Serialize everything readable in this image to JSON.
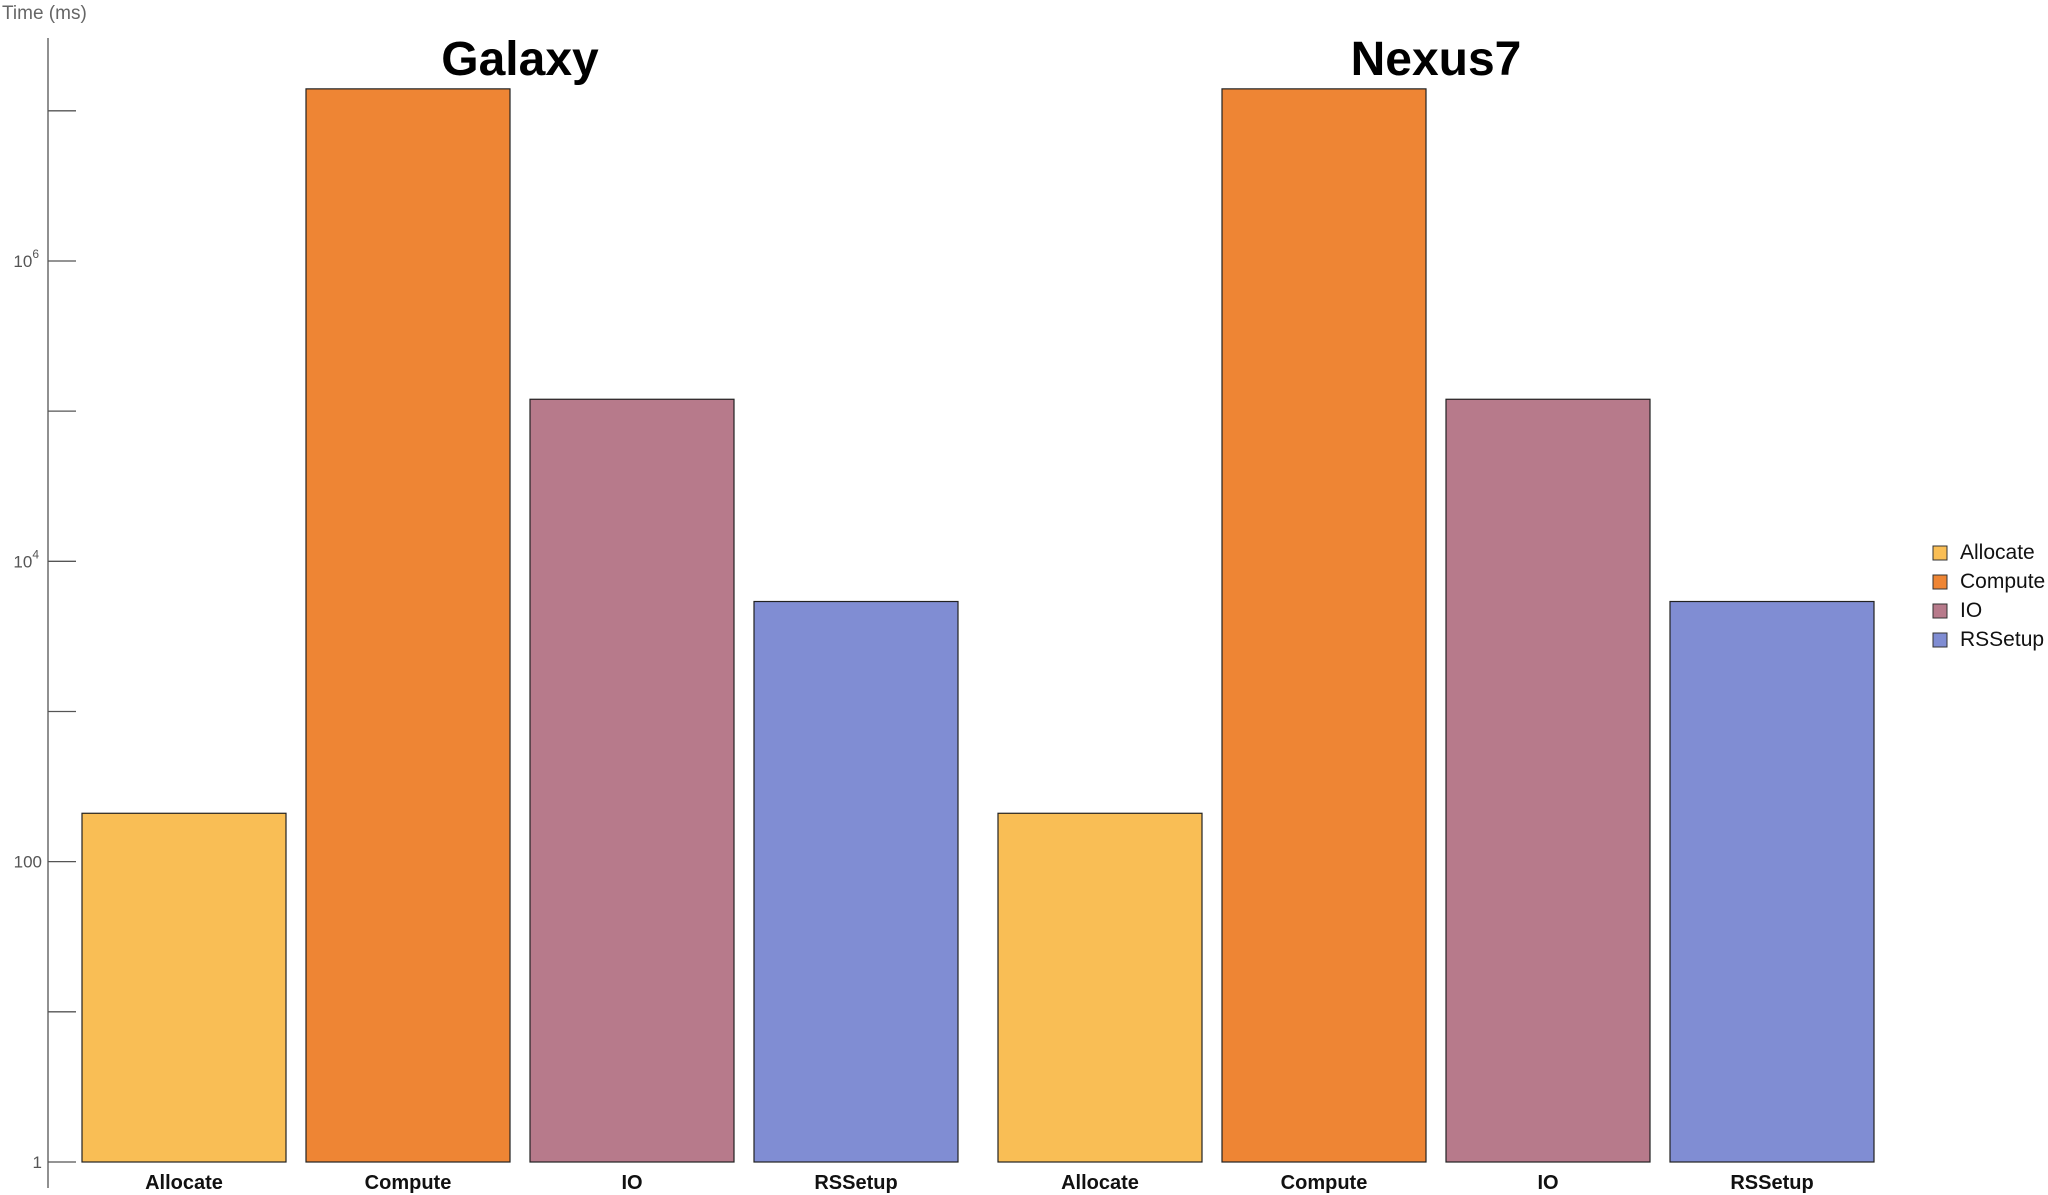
{
  "chart_data": {
    "type": "bar",
    "ylabel": "Time (ms)",
    "yscale": "log",
    "ylim": [
      1,
      50000000
    ],
    "yticks": [
      {
        "value": 1,
        "label": "1",
        "major": true
      },
      {
        "value": 10,
        "label": "",
        "major": false
      },
      {
        "value": 100,
        "label": "100",
        "major": true
      },
      {
        "value": 1000,
        "label": "",
        "major": false
      },
      {
        "value": 10000,
        "label": "10",
        "exp": "4",
        "major": true
      },
      {
        "value": 100000,
        "label": "",
        "major": false
      },
      {
        "value": 1000000,
        "label": "10",
        "exp": "6",
        "major": true
      },
      {
        "value": 10000000,
        "label": "",
        "major": false
      }
    ],
    "categories": [
      "Allocate",
      "Compute",
      "IO",
      "RSSetup"
    ],
    "colors": {
      "Allocate": "#F9BE55",
      "Compute": "#EE8534",
      "IO": "#B77A8B",
      "RSSetup": "#808DD3"
    },
    "panels": [
      {
        "title": "Galaxy",
        "values": [
          210,
          14000000,
          120000,
          5400
        ]
      },
      {
        "title": "Nexus7",
        "values": [
          210,
          14000000,
          120000,
          5400
        ]
      }
    ],
    "legend": {
      "position": "right",
      "items": [
        "Allocate",
        "Compute",
        "IO",
        "RSSetup"
      ]
    },
    "grid": false
  }
}
